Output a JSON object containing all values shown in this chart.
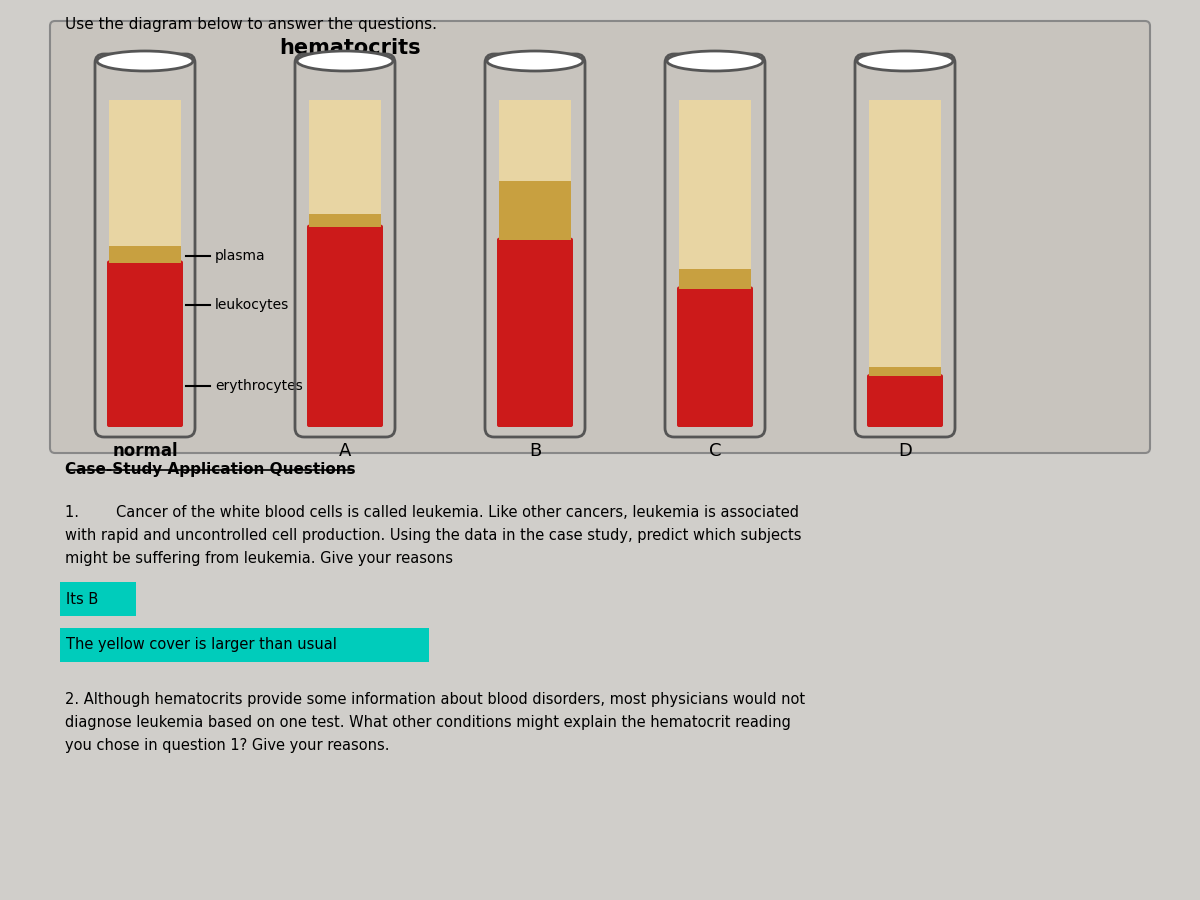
{
  "bg_color": "#d0ceca",
  "panel_bg": "#c8c4be",
  "title": "hematocrits",
  "labels_left": [
    "plasma",
    "leukocytes",
    "erythrocytes"
  ],
  "label_normal": "normal",
  "tube_labels": [
    "A",
    "B",
    "C",
    "D"
  ],
  "heading": "Use the diagram below to answer the questions.",
  "section_title": "Case-Study Application Questions",
  "q1_text": "1.        Cancer of the white blood cells is called leukemia. Like other cancers, leukemia is associated\nwith rapid and uncontrolled cell production. Using the data in the case study, predict which subjects\nmight be suffering from leukemia. Give your reasons",
  "ans1a": "Its B",
  "ans1b": "The yellow cover is larger than usual",
  "q2_text": "2. Although hematocrits provide some information about blood disorders, most physicians would not\ndiagnose leukemia based on one test. What other conditions might explain the hematocrit reading\nyou chose in question 1? Give your reasons.",
  "plasma_color": "#e8d5a3",
  "leukocyte_color": "#c8a040",
  "erythrocyte_color": "#cc1a1a",
  "tube_outline": "#555555",
  "highlight_green": "#00ccbb",
  "tubes": {
    "normal": {
      "plasma": 0.45,
      "leukocyte": 0.05,
      "erythrocyte": 0.5
    },
    "A": {
      "plasma": 0.35,
      "leukocyte": 0.04,
      "erythrocyte": 0.61
    },
    "B": {
      "plasma": 0.25,
      "leukocyte": 0.18,
      "erythrocyte": 0.57
    },
    "C": {
      "plasma": 0.52,
      "leukocyte": 0.06,
      "erythrocyte": 0.42
    },
    "D": {
      "plasma": 0.82,
      "leukocyte": 0.03,
      "erythrocyte": 0.15
    }
  },
  "label_fracs": {
    "plasma": 0.52,
    "leukocytes": 0.37,
    "erythrocytes": 0.12
  }
}
